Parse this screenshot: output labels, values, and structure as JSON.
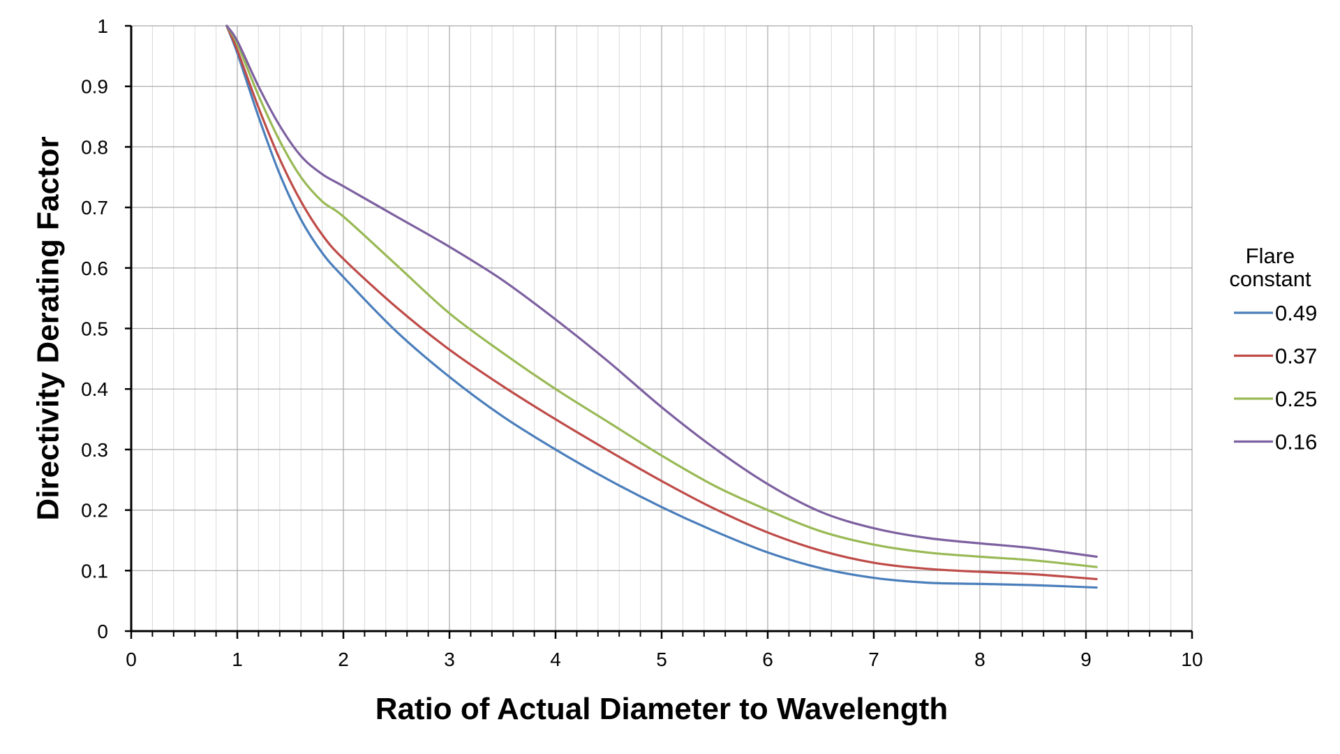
{
  "chart_data": {
    "type": "line",
    "title": "",
    "xlabel": "Ratio of Actual Diameter to Wavelength",
    "ylabel": "Directivity Derating Factor",
    "xlim": [
      0,
      10
    ],
    "ylim": [
      0,
      1
    ],
    "xticks": [
      "0",
      "1",
      "2",
      "3",
      "4",
      "5",
      "6",
      "7",
      "8",
      "9",
      "10"
    ],
    "yticks": [
      "0",
      "0.1",
      "0.2",
      "0.3",
      "0.4",
      "0.5",
      "0.6",
      "0.7",
      "0.8",
      "0.9",
      "1"
    ],
    "x_major_step": 1,
    "x_minor_step": 0.2,
    "y_major_step": 0.1,
    "grid": true,
    "legend": {
      "title_line1": "Flare",
      "title_line2": "constant",
      "placement": "right"
    },
    "series": [
      {
        "name": "0.49",
        "color": "#4a7ebb",
        "x": [
          0.9,
          1.0,
          1.2,
          1.4,
          1.6,
          1.8,
          2.0,
          2.5,
          3.0,
          3.5,
          4.0,
          4.5,
          5.0,
          5.5,
          6.0,
          6.5,
          7.0,
          7.5,
          8.0,
          8.5,
          9.1
        ],
        "y": [
          1.0,
          0.955,
          0.85,
          0.755,
          0.68,
          0.625,
          0.585,
          0.495,
          0.42,
          0.355,
          0.3,
          0.25,
          0.205,
          0.165,
          0.13,
          0.104,
          0.088,
          0.08,
          0.078,
          0.076,
          0.072
        ]
      },
      {
        "name": "0.37",
        "color": "#be4b48",
        "x": [
          0.9,
          1.0,
          1.2,
          1.4,
          1.6,
          1.8,
          2.0,
          2.5,
          3.0,
          3.5,
          4.0,
          4.5,
          5.0,
          5.5,
          6.0,
          6.5,
          7.0,
          7.5,
          8.0,
          8.5,
          9.1
        ],
        "y": [
          1.0,
          0.96,
          0.865,
          0.78,
          0.71,
          0.655,
          0.615,
          0.535,
          0.465,
          0.405,
          0.35,
          0.298,
          0.248,
          0.202,
          0.163,
          0.133,
          0.113,
          0.103,
          0.098,
          0.094,
          0.086
        ]
      },
      {
        "name": "0.25",
        "color": "#98b954",
        "x": [
          0.9,
          1.0,
          1.2,
          1.4,
          1.6,
          1.8,
          2.0,
          2.5,
          3.0,
          3.5,
          4.0,
          4.5,
          5.0,
          5.5,
          6.0,
          6.5,
          7.0,
          7.5,
          8.0,
          8.5,
          9.1
        ],
        "y": [
          1.0,
          0.97,
          0.885,
          0.81,
          0.75,
          0.71,
          0.685,
          0.605,
          0.525,
          0.46,
          0.4,
          0.345,
          0.29,
          0.24,
          0.2,
          0.165,
          0.143,
          0.13,
          0.123,
          0.117,
          0.106
        ]
      },
      {
        "name": "0.16",
        "color": "#7d60a0",
        "x": [
          0.9,
          1.0,
          1.2,
          1.4,
          1.6,
          1.8,
          2.0,
          2.5,
          3.0,
          3.5,
          4.0,
          4.5,
          5.0,
          5.5,
          6.0,
          6.5,
          7.0,
          7.5,
          8.0,
          8.5,
          9.1
        ],
        "y": [
          1.0,
          0.975,
          0.9,
          0.835,
          0.785,
          0.755,
          0.735,
          0.685,
          0.635,
          0.58,
          0.515,
          0.445,
          0.37,
          0.302,
          0.243,
          0.197,
          0.17,
          0.154,
          0.145,
          0.137,
          0.123
        ]
      }
    ]
  }
}
